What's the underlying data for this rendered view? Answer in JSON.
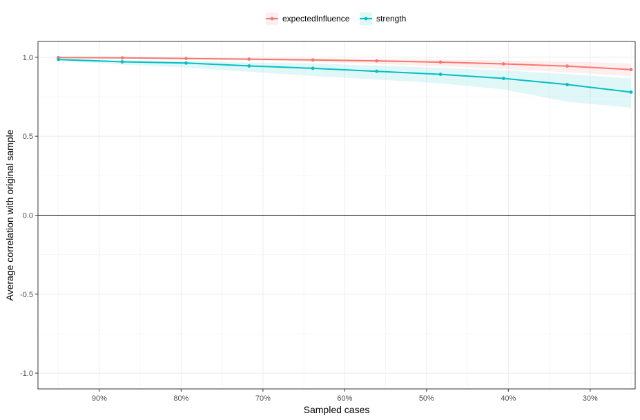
{
  "chart_data": {
    "type": "line",
    "title": "",
    "xlabel": "Sampled cases",
    "ylabel": "Average correlation with original sample",
    "x_reversed": true,
    "xlim": [
      0.245,
      0.975
    ],
    "ylim": [
      -1.1,
      1.1
    ],
    "x_ticks": [
      0.9,
      0.8,
      0.7,
      0.6,
      0.5,
      0.4,
      0.3
    ],
    "x_tick_labels": [
      "90%",
      "80%",
      "70%",
      "60%",
      "50%",
      "40%",
      "30%"
    ],
    "y_ticks": [
      1.0,
      0.5,
      0.0,
      -0.5,
      -1.0
    ],
    "y_tick_labels": [
      "1.0",
      "0.5",
      "0.0",
      "-0.5",
      "-1.0"
    ],
    "x": [
      0.95,
      0.872,
      0.794,
      0.717,
      0.639,
      0.561,
      0.483,
      0.406,
      0.328,
      0.25
    ],
    "hline": 0,
    "grid": true,
    "legend_position": "top",
    "series": [
      {
        "name": "expectedInfluence",
        "color": "#F8766D",
        "values": [
          0.998,
          0.996,
          0.992,
          0.988,
          0.983,
          0.977,
          0.969,
          0.958,
          0.944,
          0.922
        ],
        "lower": [
          0.997,
          0.993,
          0.987,
          0.979,
          0.97,
          0.958,
          0.943,
          0.925,
          0.905,
          0.88
        ],
        "upper": [
          0.999,
          0.998,
          0.996,
          0.995,
          0.993,
          0.99,
          0.986,
          0.98,
          0.972,
          0.96
        ]
      },
      {
        "name": "strength",
        "color": "#00BFC4",
        "values": [
          0.986,
          0.971,
          0.963,
          0.945,
          0.93,
          0.911,
          0.892,
          0.866,
          0.827,
          0.779
        ],
        "lower": [
          0.978,
          0.953,
          0.935,
          0.908,
          0.881,
          0.858,
          0.834,
          0.796,
          0.718,
          0.68
        ],
        "upper": [
          0.992,
          0.983,
          0.978,
          0.967,
          0.961,
          0.948,
          0.933,
          0.917,
          0.893,
          0.866
        ]
      }
    ]
  }
}
